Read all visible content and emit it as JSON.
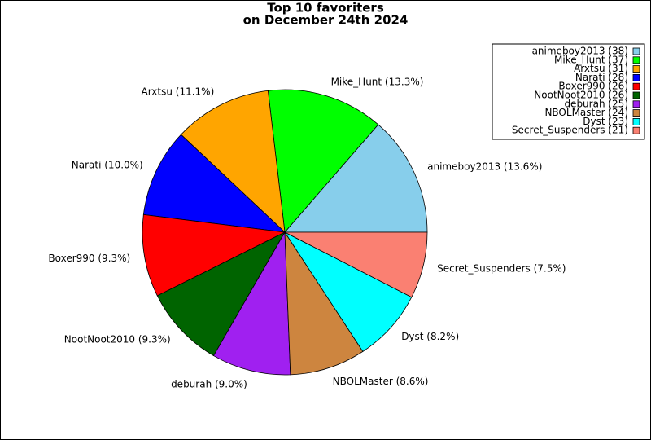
{
  "chart_data": {
    "type": "pie",
    "title": [
      "Top 10 favoriters",
      "on December 24th 2024"
    ],
    "values": [
      38,
      37,
      31,
      28,
      26,
      26,
      25,
      24,
      23,
      21
    ],
    "labels": [
      "animeboy2013 (13.6%)",
      "Mike_Hunt (13.3%)",
      "Arxtsu (11.1%)",
      "Narati (10.0%)",
      "Boxer990 (9.3%)",
      "NootNoot2010 (9.3%)",
      "deburah (9.0%)",
      "NBOLMaster (8.6%)",
      "Dyst (8.2%)",
      "Secret_Suspenders (7.5%)"
    ],
    "legend_labels": [
      "animeboy2013 (38)",
      "Mike_Hunt (37)",
      "Arxtsu (31)",
      "Narati (28)",
      "Boxer990 (26)",
      "NootNoot2010 (26)",
      "deburah (25)",
      "NBOLMaster (24)",
      "Dyst (23)",
      "Secret_Suspenders (21)"
    ],
    "colors": [
      "#87ceeb",
      "#00ff00",
      "#ffa500",
      "#0000ff",
      "#ff0000",
      "#006400",
      "#a020f0",
      "#cd853f",
      "#00ffff",
      "#fa8072"
    ],
    "legend": "upper right"
  }
}
